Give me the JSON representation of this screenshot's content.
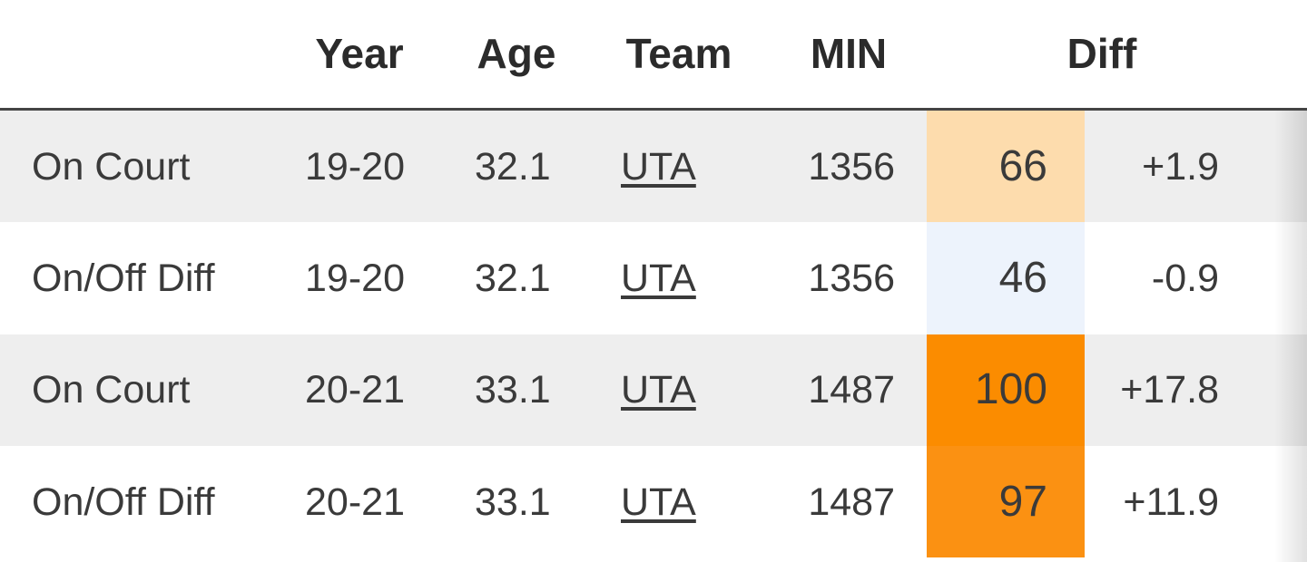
{
  "header": {
    "year": "Year",
    "age": "Age",
    "team": "Team",
    "min": "MIN",
    "diff": "Diff"
  },
  "rows": [
    {
      "label": "On Court",
      "year": "19-20",
      "age": 32.1,
      "team": "UTA",
      "min": 1356,
      "pct": 66,
      "pct_color": "#fddcad",
      "diff": "+1.9"
    },
    {
      "label": "On/Off Diff",
      "year": "19-20",
      "age": 32.1,
      "team": "UTA",
      "min": 1356,
      "pct": 46,
      "pct_color": "#edf3fc",
      "diff": "-0.9"
    },
    {
      "label": "On Court",
      "year": "20-21",
      "age": 33.1,
      "team": "UTA",
      "min": 1487,
      "pct": 100,
      "pct_color": "#fb8c00",
      "diff": "+17.8"
    },
    {
      "label": "On/Off Diff",
      "year": "20-21",
      "age": 33.1,
      "team": "UTA",
      "min": 1487,
      "pct": 97,
      "pct_color": "#fb9112",
      "diff": "+11.9"
    }
  ]
}
